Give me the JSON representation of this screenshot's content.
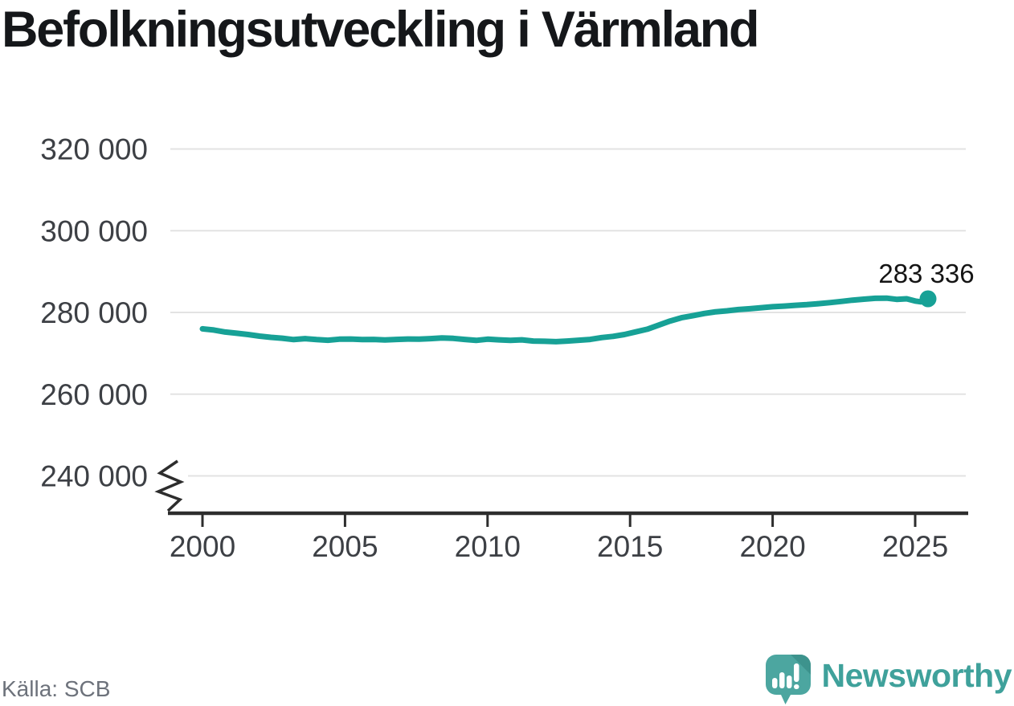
{
  "page": {
    "title": "Befolkningsutveckling i Värmland"
  },
  "chart_data": {
    "type": "line",
    "title": "Befolkningsutveckling i Värmland",
    "xlabel": "",
    "ylabel": "",
    "grid": "horizontal",
    "legend": "none",
    "y_axis_break": true,
    "ylim": [
      236000,
      324000
    ],
    "xlim": [
      1998.8,
      2026.9
    ],
    "line_color": "#17a196",
    "y_ticks": [
      {
        "value": 320000,
        "label": "320 000"
      },
      {
        "value": 300000,
        "label": "300 000"
      },
      {
        "value": 280000,
        "label": "280 000"
      },
      {
        "value": 260000,
        "label": "260 000"
      },
      {
        "value": 240000,
        "label": "240 000"
      }
    ],
    "x_ticks": [
      {
        "year": 2000,
        "label": "2000"
      },
      {
        "year": 2005,
        "label": "2005"
      },
      {
        "year": 2010,
        "label": "2010"
      },
      {
        "year": 2015,
        "label": "2015"
      },
      {
        "year": 2020,
        "label": "2020"
      },
      {
        "year": 2025,
        "label": "2025"
      }
    ],
    "points": [
      [
        2000.0,
        276000
      ],
      [
        2000.4,
        275700
      ],
      [
        2000.8,
        275200
      ],
      [
        2001.2,
        274900
      ],
      [
        2001.6,
        274600
      ],
      [
        2002.0,
        274200
      ],
      [
        2002.4,
        273900
      ],
      [
        2002.8,
        273700
      ],
      [
        2003.2,
        273350
      ],
      [
        2003.6,
        273600
      ],
      [
        2004.0,
        273350
      ],
      [
        2004.4,
        273200
      ],
      [
        2004.8,
        273450
      ],
      [
        2005.2,
        273500
      ],
      [
        2005.6,
        273350
      ],
      [
        2006.0,
        273400
      ],
      [
        2006.4,
        273250
      ],
      [
        2006.8,
        273400
      ],
      [
        2007.2,
        273500
      ],
      [
        2007.6,
        273450
      ],
      [
        2008.0,
        273600
      ],
      [
        2008.4,
        273750
      ],
      [
        2008.8,
        273650
      ],
      [
        2009.2,
        273400
      ],
      [
        2009.6,
        273150
      ],
      [
        2010.0,
        273450
      ],
      [
        2010.4,
        273300
      ],
      [
        2010.8,
        273150
      ],
      [
        2011.2,
        273300
      ],
      [
        2011.6,
        273000
      ],
      [
        2012.0,
        272950
      ],
      [
        2012.4,
        272850
      ],
      [
        2012.8,
        273000
      ],
      [
        2013.2,
        273200
      ],
      [
        2013.6,
        273400
      ],
      [
        2014.0,
        273850
      ],
      [
        2014.4,
        274150
      ],
      [
        2014.8,
        274600
      ],
      [
        2015.2,
        275250
      ],
      [
        2015.6,
        275900
      ],
      [
        2016.0,
        276900
      ],
      [
        2016.4,
        277900
      ],
      [
        2016.8,
        278700
      ],
      [
        2017.2,
        279200
      ],
      [
        2017.6,
        279750
      ],
      [
        2018.0,
        280150
      ],
      [
        2018.4,
        280400
      ],
      [
        2018.8,
        280700
      ],
      [
        2019.2,
        280900
      ],
      [
        2019.6,
        281150
      ],
      [
        2020.0,
        281400
      ],
      [
        2020.4,
        281550
      ],
      [
        2020.8,
        281750
      ],
      [
        2021.2,
        281900
      ],
      [
        2021.6,
        282150
      ],
      [
        2022.0,
        282400
      ],
      [
        2022.4,
        282700
      ],
      [
        2022.8,
        283000
      ],
      [
        2023.2,
        283250
      ],
      [
        2023.6,
        283450
      ],
      [
        2024.0,
        283500
      ],
      [
        2024.35,
        283200
      ],
      [
        2024.7,
        283350
      ],
      [
        2025.0,
        282800
      ],
      [
        2025.2,
        282600
      ],
      [
        2025.45,
        283336
      ]
    ],
    "end_point": {
      "value": 283336,
      "label": "283 336"
    }
  },
  "footer": {
    "source": "Källa: SCB",
    "brand": "Newsworthy"
  },
  "colors": {
    "line": "#17a196",
    "brand_text": "#3fa19b",
    "brand_mark": "#4ca6a0",
    "brand_mark_shade": "#3d938d",
    "grid": "#e3e3e3",
    "axis": "#2d2d2d"
  }
}
